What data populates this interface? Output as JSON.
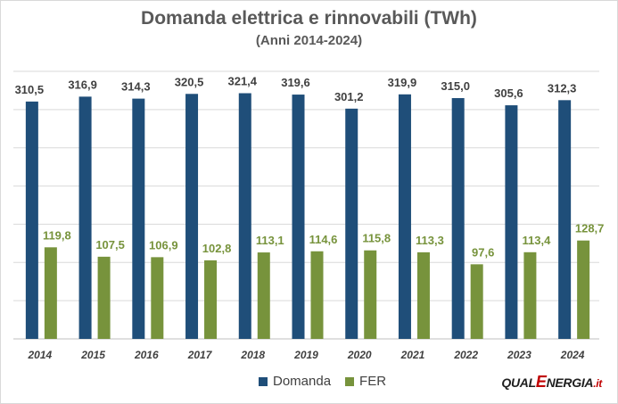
{
  "chart_data": {
    "type": "bar",
    "title": "Domanda elettrica e rinnovabili (TWh)",
    "subtitle": "(Anni 2014-2024)",
    "categories": [
      "2014",
      "2015",
      "2016",
      "2017",
      "2018",
      "2019",
      "2020",
      "2021",
      "2022",
      "2023",
      "2024"
    ],
    "series": [
      {
        "name": "Domanda",
        "color": "#1f4e79",
        "label_color": "#404040",
        "values": [
          310.5,
          316.9,
          314.3,
          320.5,
          321.4,
          319.6,
          301.2,
          319.9,
          315.0,
          305.6,
          312.3
        ],
        "labels": [
          "310,5",
          "316,9",
          "314,3",
          "320,5",
          "321,4",
          "319,6",
          "301,2",
          "319,9",
          "315,0",
          "305,6",
          "312,3"
        ]
      },
      {
        "name": "FER",
        "color": "#77933c",
        "label_color": "#77933c",
        "values": [
          119.8,
          107.5,
          106.9,
          102.8,
          113.1,
          114.6,
          115.8,
          113.3,
          97.6,
          113.4,
          128.7
        ],
        "labels": [
          "119,8",
          "107,5",
          "106,9",
          "102,8",
          "113,1",
          "114,6",
          "115,8",
          "113,3",
          "97,6",
          "113,4",
          "128,7"
        ]
      }
    ],
    "ylim": [
      0,
      350
    ],
    "grid": true,
    "legend_position": "bottom"
  },
  "logo": {
    "part1": "QUAL",
    "part2": "E",
    "part3": "NERGIA",
    "part4": ".it"
  }
}
